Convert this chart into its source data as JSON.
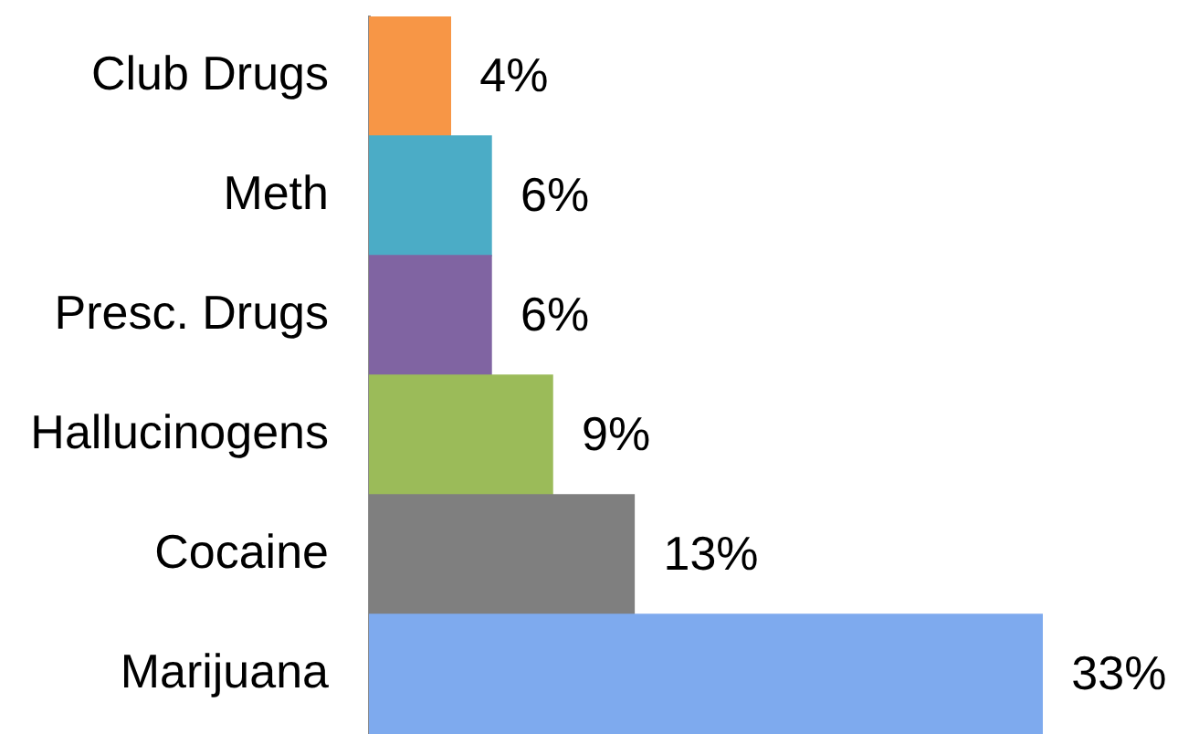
{
  "chart_data": {
    "type": "bar",
    "orientation": "horizontal",
    "categories": [
      "Club Drugs",
      "Meth",
      "Presc. Drugs",
      "Hallucinogens",
      "Cocaine",
      "Marijuana"
    ],
    "values": [
      4,
      6,
      6,
      9,
      13,
      33
    ],
    "value_labels": [
      "4%",
      "6%",
      "6%",
      "9%",
      "13%",
      "33%"
    ],
    "colors": [
      "#f79646",
      "#4bacc6",
      "#8064a2",
      "#9bbb59",
      "#7f7f7f",
      "#7eaaee"
    ],
    "tick_labels": "y"
  }
}
